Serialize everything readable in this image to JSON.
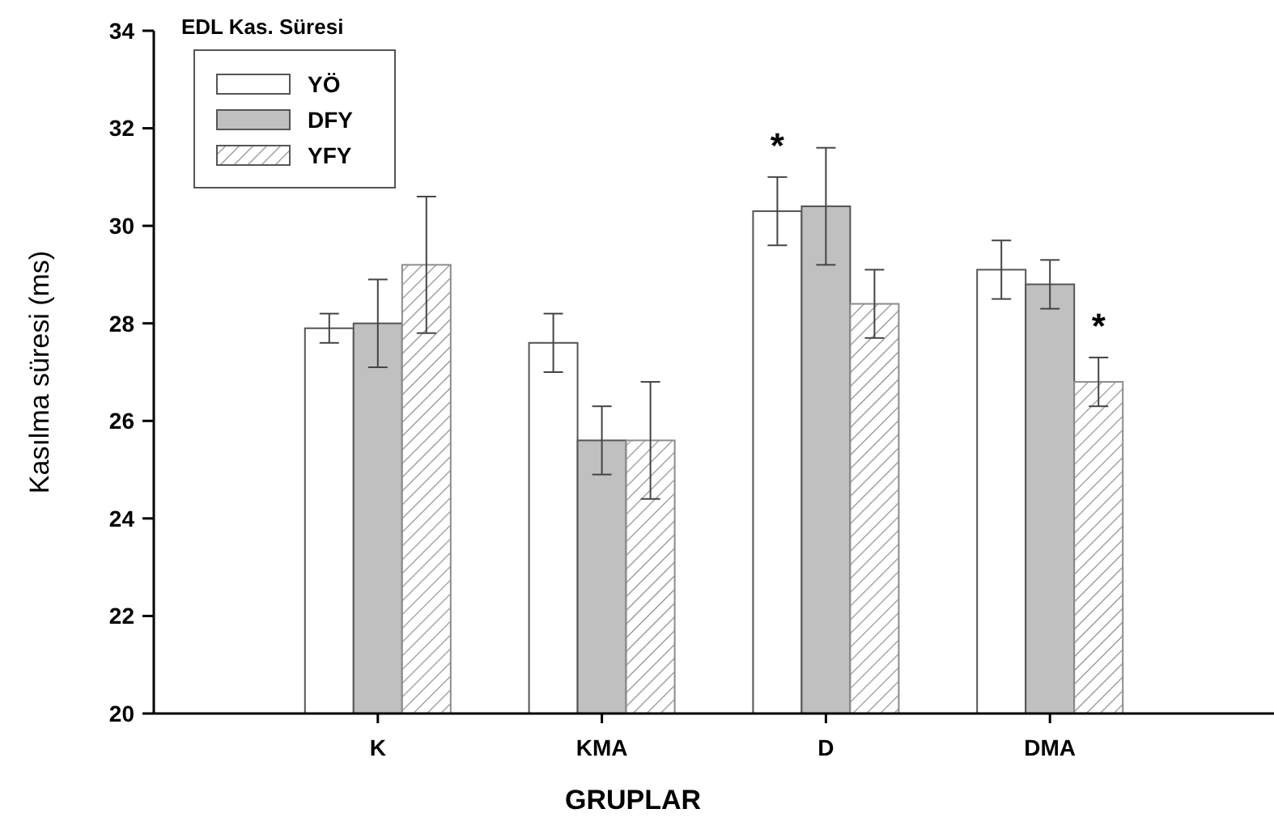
{
  "chart_data": {
    "type": "bar",
    "legend_title": "EDL Kas. Süresi",
    "xlabel": "GRUPLAR",
    "ylabel": "Kasılma süresi (ms)",
    "categories": [
      "K",
      "KMA",
      "D",
      "DMA"
    ],
    "series": [
      {
        "name": "YÖ",
        "color": "#ffffff",
        "values": [
          27.9,
          27.6,
          30.3,
          29.1
        ],
        "errors": [
          0.3,
          0.6,
          0.7,
          0.6
        ]
      },
      {
        "name": "DFY",
        "color": "#c0c0c0",
        "values": [
          28.0,
          25.6,
          30.4,
          28.8
        ],
        "errors": [
          0.9,
          0.7,
          1.2,
          0.5
        ]
      },
      {
        "name": "YFY",
        "color": "#8c8c8c",
        "values": [
          29.2,
          25.6,
          28.4,
          26.8
        ],
        "errors": [
          1.4,
          1.2,
          0.7,
          0.5
        ]
      }
    ],
    "ylim": [
      20,
      34
    ],
    "yticks": [
      20,
      22,
      24,
      26,
      28,
      30,
      32,
      34
    ],
    "grid": false,
    "legend": "top left",
    "annotations": [
      "*",
      "*"
    ]
  }
}
